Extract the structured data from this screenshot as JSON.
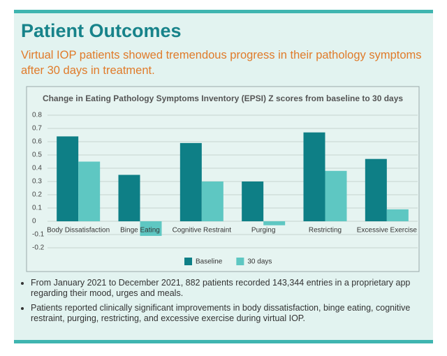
{
  "header": {
    "title": "Patient Outcomes",
    "subtitle": "Virtual IOP patients showed tremendous progress in their pathology symptoms after 30 days in treatment."
  },
  "chart_data": {
    "type": "bar",
    "title": "Change in Eating Pathology Symptoms Inventory (EPSI) Z scores from baseline to 30 days",
    "categories": [
      "Body Dissatisfaction",
      "Binge Eating",
      "Cognitive Restraint",
      "Purging",
      "Restricting",
      "Excessive Exercise"
    ],
    "series": [
      {
        "name": "Baseline",
        "color": "#0e7f86",
        "values": [
          0.64,
          0.35,
          0.59,
          0.3,
          0.67,
          0.47
        ]
      },
      {
        "name": "30 days",
        "color": "#5ec7c2",
        "values": [
          0.45,
          -0.11,
          0.3,
          -0.03,
          0.38,
          0.09
        ]
      }
    ],
    "ylim": [
      -0.2,
      0.8
    ],
    "yticks": [
      0.8,
      0.7,
      0.6,
      0.5,
      0.4,
      0.3,
      0.2,
      0.1,
      0,
      -0.1,
      -0.2
    ],
    "grid": true,
    "legend": "bottom"
  },
  "notes": [
    "From January 2021 to December 2021, 882 patients recorded 143,344 entries in a proprietary app regarding their mood, urges and meals.",
    "Patients reported clinically significant improvements in body dissatisfaction, binge eating, cognitive restraint, purging, restricting, and excessive exercise during virtual IOP."
  ]
}
